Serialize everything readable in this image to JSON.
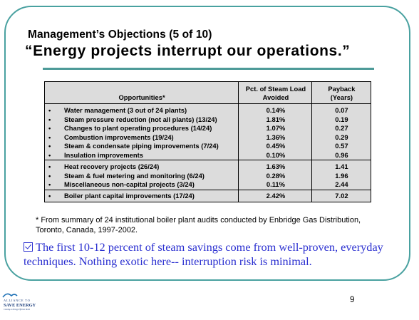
{
  "slide": {
    "subtitle": "Management’s Objections (5 of 10)",
    "title": "“Energy projects interrupt our operations.”",
    "page_number": "9"
  },
  "table": {
    "columns": [
      "Opportunities*",
      "Pct. of Steam Load Avoided",
      "Payback (Years)"
    ],
    "col_pct_line1": "Pct. of Steam Load",
    "col_pct_line2": "Avoided",
    "col_pay_line1": "Payback",
    "col_pay_line2": "(Years)",
    "groups": [
      [
        {
          "item": "Water management (3 out of 24 plants)",
          "pct": "0.14%",
          "payback": "0.07"
        },
        {
          "item": "Steam pressure reduction (not all plants) (13/24)",
          "pct": "1.81%",
          "payback": "0.19"
        },
        {
          "item": "Changes to plant operating procedures (14/24)",
          "pct": "1.07%",
          "payback": "0.27"
        },
        {
          "item": "Combustion improvements  (19/24)",
          "pct": "1.36%",
          "payback": "0.29"
        },
        {
          "item": "Steam & condensate piping improvements (7/24)",
          "pct": "0.45%",
          "payback": "0.57"
        },
        {
          "item": "Insulation improvements",
          "pct": "0.10%",
          "payback": "0.96"
        }
      ],
      [
        {
          "item": "Heat recovery projects (26/24)",
          "pct": "1.63%",
          "payback": "1.41"
        },
        {
          "item": "Steam & fuel metering and monitoring (6/24)",
          "pct": "0.28%",
          "payback": "1.96"
        },
        {
          "item": "Miscellaneous non-capital projects (3/24)",
          "pct": "0.11%",
          "payback": "2.44"
        }
      ],
      [
        {
          "item": "Boiler plant capital improvements (17/24)",
          "pct": "2.42%",
          "payback": "7.02"
        }
      ]
    ]
  },
  "footnote_line1": "* From summary of 24 institutional boiler plant audits conducted by Enbridge Gas Distribution,",
  "footnote_line2": "Toronto, Canada, 1997-2002.",
  "conclusion": "The first 10-12 percent of steam savings come from well-proven, everyday techniques. Nothing exotic here-- interruption risk is minimal.",
  "logo": {
    "line1": "ALLIANCE TO",
    "line2": "SAVE ENERGY",
    "tagline": "Creating an Energy-Efficient World"
  },
  "colors": {
    "frame": "#49a1a0",
    "rule": "#4d9a98",
    "table_bg": "#dcdcdc",
    "conclusion_text": "#2a2fd0"
  }
}
